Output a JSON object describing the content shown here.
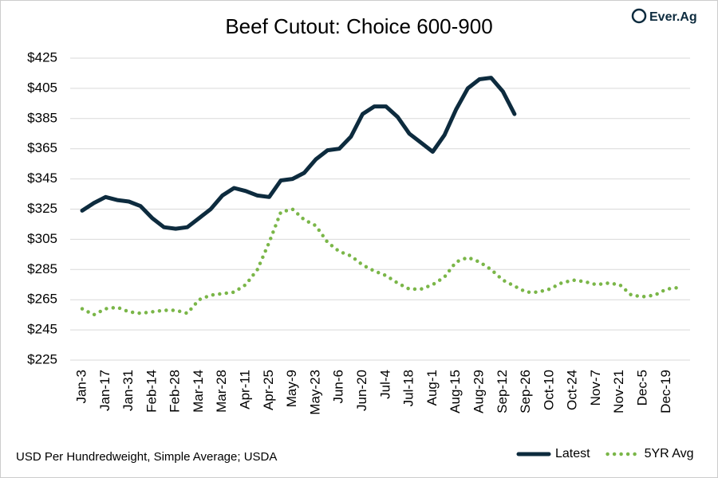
{
  "brand": "Ever.Ag",
  "chart_data": {
    "type": "line",
    "title": "Beef Cutout: Choice 600-900",
    "footnote": "USD Per Hundredweight, Simple Average; USDA",
    "categories": [
      "Jan-3",
      null,
      "Jan-17",
      null,
      "Jan-31",
      null,
      "Feb-14",
      null,
      "Feb-28",
      null,
      "Mar-14",
      null,
      "Mar-28",
      null,
      "Apr-11",
      null,
      "Apr-25",
      null,
      "May-9",
      null,
      "May-23",
      null,
      "Jun-6",
      null,
      "Jun-20",
      null,
      "Jul-4",
      null,
      "Jul-18",
      null,
      "Aug-1",
      null,
      "Aug-15",
      null,
      "Aug-29",
      null,
      "Sep-12",
      null,
      "Sep-26",
      null,
      "Oct-10",
      null,
      "Oct-24",
      null,
      "Nov-7",
      null,
      "Nov-21",
      null,
      "Dec-5",
      null,
      "Dec-19",
      null
    ],
    "series": [
      {
        "name": "Latest",
        "color": "#0d2b3e",
        "style": "solid",
        "values": [
          324,
          329,
          333,
          331,
          330,
          327,
          319,
          313,
          312,
          313,
          319,
          325,
          334,
          339,
          337,
          334,
          333,
          344,
          345,
          349,
          358,
          364,
          365,
          373,
          388,
          393,
          393,
          386,
          375,
          369,
          363,
          374,
          391,
          405,
          411,
          412,
          403,
          388,
          null,
          null,
          null,
          null,
          null,
          null,
          null,
          null,
          null,
          null,
          null,
          null,
          null,
          null
        ]
      },
      {
        "name": "5YR Avg",
        "color": "#7ab648",
        "style": "dotted",
        "values": [
          259,
          255,
          259,
          260,
          257,
          256,
          257,
          258,
          258,
          256,
          265,
          268,
          269,
          270,
          275,
          285,
          303,
          323,
          325,
          318,
          314,
          303,
          297,
          294,
          288,
          284,
          281,
          276,
          272,
          272,
          275,
          280,
          290,
          293,
          290,
          285,
          278,
          274,
          270,
          270,
          272,
          276,
          278,
          277,
          275,
          276,
          275,
          268,
          267,
          268,
          272,
          273
        ]
      }
    ],
    "ylim": [
      225,
      425
    ],
    "yticks": [
      {
        "value": 225,
        "label": "$225"
      },
      {
        "value": 245,
        "label": "$245"
      },
      {
        "value": 265,
        "label": "$265"
      },
      {
        "value": 285,
        "label": "$285"
      },
      {
        "value": 305,
        "label": "$305"
      },
      {
        "value": 325,
        "label": "$325"
      },
      {
        "value": 345,
        "label": "$345"
      },
      {
        "value": 365,
        "label": "$365"
      },
      {
        "value": 385,
        "label": "$385"
      },
      {
        "value": 405,
        "label": "$405"
      },
      {
        "value": 425,
        "label": "$425"
      }
    ],
    "grid": true,
    "legend": "bottom-right"
  }
}
